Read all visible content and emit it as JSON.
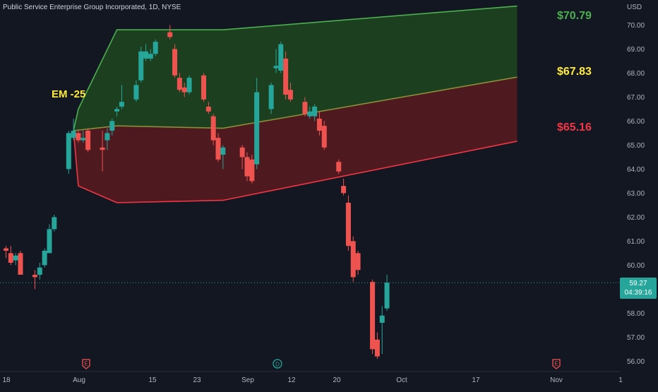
{
  "header": {
    "symbol_title": "Public Service Enterprise Group Incorporated, 1D, NYSE",
    "currency": "USD"
  },
  "last_price": {
    "value": "59.27",
    "countdown": "04:39:16"
  },
  "colors": {
    "background": "#131722",
    "up_candle": "#26a69a",
    "down_candle": "#ef5350",
    "upper_zone": "#1e4620",
    "lower_zone": "#5a1a20",
    "upper_line": "#4caf50",
    "lower_line": "#f23645",
    "mid_line": "#8a8f3a",
    "em_label": "#ffeb3b"
  },
  "events": [
    {
      "x": "Jul 31",
      "icon": "earnings-icon",
      "label": "E"
    },
    {
      "x": "Sep 6",
      "icon": "dividend-icon",
      "label": "D"
    },
    {
      "x": "Nov 1",
      "icon": "earnings-icon",
      "label": "E"
    }
  ],
  "chart_data": {
    "type": "candlestick",
    "title": "Public Service Enterprise Group Incorporated, 1D, NYSE",
    "y_unit": "USD",
    "ylim": [
      55.7,
      70.8
    ],
    "y_ticks": [
      "56.00",
      "57.00",
      "58.00",
      "59.00",
      "60.00",
      "61.00",
      "62.00",
      "63.00",
      "64.00",
      "65.00",
      "66.00",
      "67.00",
      "68.00",
      "69.00",
      "70.00"
    ],
    "x_ticks": [
      "18",
      "Aug",
      "15",
      "23",
      "Sep",
      "12",
      "20",
      "Oct",
      "17",
      "Nov",
      "1"
    ],
    "candles": [
      {
        "d": "Jul 18",
        "o": 60.7,
        "h": 60.8,
        "l": 60.3,
        "c": 60.6
      },
      {
        "d": "Jul 19",
        "o": 60.5,
        "h": 60.8,
        "l": 60.0,
        "c": 60.1
      },
      {
        "d": "Jul 20",
        "o": 60.2,
        "h": 60.5,
        "l": 60.0,
        "c": 60.4
      },
      {
        "d": "Jul 21",
        "o": 60.5,
        "h": 60.6,
        "l": 59.6,
        "c": 59.6
      },
      {
        "d": "Jul 24",
        "o": 59.6,
        "h": 59.8,
        "l": 59.0,
        "c": 59.5
      },
      {
        "d": "Jul 25",
        "o": 59.6,
        "h": 60.1,
        "l": 59.4,
        "c": 59.9
      },
      {
        "d": "Jul 26",
        "o": 60.0,
        "h": 60.7,
        "l": 59.9,
        "c": 60.6
      },
      {
        "d": "Jul 27",
        "o": 60.5,
        "h": 61.7,
        "l": 60.5,
        "c": 61.5
      },
      {
        "d": "Jul 28",
        "o": 61.5,
        "h": 62.1,
        "l": 61.4,
        "c": 62.0
      },
      {
        "d": "Jul 31",
        "o": 64.0,
        "h": 65.6,
        "l": 63.8,
        "c": 65.5
      },
      {
        "d": "Aug 1",
        "o": 65.3,
        "h": 66.1,
        "l": 65.2,
        "c": 65.6
      },
      {
        "d": "Aug 2",
        "o": 65.5,
        "h": 65.6,
        "l": 65.1,
        "c": 65.2
      },
      {
        "d": "Aug 3",
        "o": 65.2,
        "h": 65.6,
        "l": 65.1,
        "c": 65.3
      },
      {
        "d": "Aug 4",
        "o": 65.6,
        "h": 65.7,
        "l": 64.7,
        "c": 64.8
      },
      {
        "d": "Aug 7",
        "o": 64.9,
        "h": 65.6,
        "l": 63.9,
        "c": 64.8
      },
      {
        "d": "Aug 8",
        "o": 65.2,
        "h": 65.7,
        "l": 64.8,
        "c": 65.5
      },
      {
        "d": "Aug 9",
        "o": 65.6,
        "h": 66.1,
        "l": 65.4,
        "c": 66.0
      },
      {
        "d": "Aug 10",
        "o": 66.4,
        "h": 66.6,
        "l": 66.2,
        "c": 66.5
      },
      {
        "d": "Aug 11",
        "o": 66.6,
        "h": 67.5,
        "l": 66.5,
        "c": 66.8
      },
      {
        "d": "Aug 14",
        "o": 66.9,
        "h": 67.7,
        "l": 66.8,
        "c": 67.5
      },
      {
        "d": "Aug 15",
        "o": 67.7,
        "h": 69.1,
        "l": 67.6,
        "c": 68.9
      },
      {
        "d": "Aug 16",
        "o": 68.6,
        "h": 69.2,
        "l": 68.5,
        "c": 68.9
      },
      {
        "d": "Aug 17",
        "o": 68.6,
        "h": 69.0,
        "l": 68.5,
        "c": 68.8
      },
      {
        "d": "Aug 18",
        "o": 68.8,
        "h": 69.4,
        "l": 68.7,
        "c": 69.3
      },
      {
        "d": "Aug 21",
        "o": 69.7,
        "h": 70.0,
        "l": 69.4,
        "c": 69.5
      },
      {
        "d": "Aug 22",
        "o": 69.0,
        "h": 69.2,
        "l": 67.8,
        "c": 67.9
      },
      {
        "d": "Aug 23",
        "o": 67.8,
        "h": 68.0,
        "l": 67.2,
        "c": 67.3
      },
      {
        "d": "Aug 24",
        "o": 67.4,
        "h": 67.6,
        "l": 67.0,
        "c": 67.2
      },
      {
        "d": "Aug 25",
        "o": 67.2,
        "h": 67.9,
        "l": 67.1,
        "c": 67.8
      },
      {
        "d": "Aug 28",
        "o": 67.9,
        "h": 68.0,
        "l": 66.8,
        "c": 66.9
      },
      {
        "d": "Aug 29",
        "o": 66.6,
        "h": 66.8,
        "l": 66.3,
        "c": 66.4
      },
      {
        "d": "Aug 30",
        "o": 66.2,
        "h": 66.3,
        "l": 65.0,
        "c": 65.2
      },
      {
        "d": "Aug 31",
        "o": 65.3,
        "h": 65.5,
        "l": 64.3,
        "c": 64.4
      },
      {
        "d": "Sep 1",
        "o": 64.6,
        "h": 65.0,
        "l": 64.0,
        "c": 64.9
      },
      {
        "d": "Sep 5",
        "o": 64.9,
        "h": 65.0,
        "l": 64.0,
        "c": 64.5
      },
      {
        "d": "Sep 6",
        "o": 64.5,
        "h": 64.7,
        "l": 63.5,
        "c": 63.7
      },
      {
        "d": "Sep 7",
        "o": 64.4,
        "h": 64.6,
        "l": 63.4,
        "c": 63.5
      },
      {
        "d": "Sep 8",
        "o": 64.2,
        "h": 67.8,
        "l": 64.0,
        "c": 67.2
      },
      {
        "d": "Sep 11",
        "o": 66.5,
        "h": 67.6,
        "l": 66.3,
        "c": 67.5
      },
      {
        "d": "Sep 12",
        "o": 68.2,
        "h": 69.0,
        "l": 68.0,
        "c": 68.3
      },
      {
        "d": "Sep 13",
        "o": 68.1,
        "h": 69.3,
        "l": 68.0,
        "c": 69.2
      },
      {
        "d": "Sep 14",
        "o": 68.6,
        "h": 68.9,
        "l": 66.9,
        "c": 67.1
      },
      {
        "d": "Sep 15",
        "o": 67.3,
        "h": 67.6,
        "l": 66.8,
        "c": 66.9
      },
      {
        "d": "Sep 18",
        "o": 66.8,
        "h": 67.0,
        "l": 66.2,
        "c": 66.3
      },
      {
        "d": "Sep 19",
        "o": 66.2,
        "h": 66.6,
        "l": 66.1,
        "c": 66.4
      },
      {
        "d": "Sep 20",
        "o": 66.2,
        "h": 66.7,
        "l": 66.0,
        "c": 66.6
      },
      {
        "d": "Sep 21",
        "o": 66.1,
        "h": 66.4,
        "l": 65.4,
        "c": 65.6
      },
      {
        "d": "Sep 22",
        "o": 65.8,
        "h": 66.0,
        "l": 64.8,
        "c": 64.9
      },
      {
        "d": "Sep 25",
        "o": 64.3,
        "h": 64.4,
        "l": 63.8,
        "c": 63.9
      },
      {
        "d": "Sep 26",
        "o": 63.3,
        "h": 63.6,
        "l": 62.9,
        "c": 63.0
      },
      {
        "d": "Sep 27",
        "o": 62.6,
        "h": 62.9,
        "l": 60.6,
        "c": 60.8
      },
      {
        "d": "Sep 28",
        "o": 61.0,
        "h": 61.2,
        "l": 59.3,
        "c": 59.5
      },
      {
        "d": "Sep 29",
        "o": 60.5,
        "h": 60.6,
        "l": 59.6,
        "c": 59.8
      },
      {
        "d": "Oct 2",
        "o": 59.3,
        "h": 59.4,
        "l": 56.3,
        "c": 56.5
      },
      {
        "d": "Oct 3",
        "o": 56.9,
        "h": 57.2,
        "l": 56.1,
        "c": 56.2
      },
      {
        "d": "Oct 4",
        "o": 57.6,
        "h": 58.3,
        "l": 56.3,
        "c": 57.9
      },
      {
        "d": "Oct 5",
        "o": 58.2,
        "h": 59.6,
        "l": 58.1,
        "c": 59.27
      }
    ],
    "zones": {
      "upper": {
        "label": "$70.79",
        "vertices": [
          [
            "Aug 1",
            65.6
          ],
          [
            "Aug 2",
            66.5
          ],
          [
            "Aug 10",
            69.8
          ],
          [
            "Sep 1",
            69.8
          ],
          [
            "Nov 1",
            70.79
          ]
        ]
      },
      "mid": {
        "label": "$67.83",
        "vertices": [
          [
            "Aug 1",
            65.6
          ],
          [
            "Aug 10",
            65.8
          ],
          [
            "Sep 1",
            65.7
          ],
          [
            "Nov 1",
            67.83
          ]
        ]
      },
      "lower": {
        "label": "$65.16",
        "vertices": [
          [
            "Aug 1",
            65.6
          ],
          [
            "Aug 2",
            63.3
          ],
          [
            "Aug 10",
            62.6
          ],
          [
            "Sep 1",
            62.7
          ],
          [
            "Nov 1",
            65.16
          ]
        ]
      }
    },
    "annotation": "EM -25",
    "current_price": 59.27
  }
}
